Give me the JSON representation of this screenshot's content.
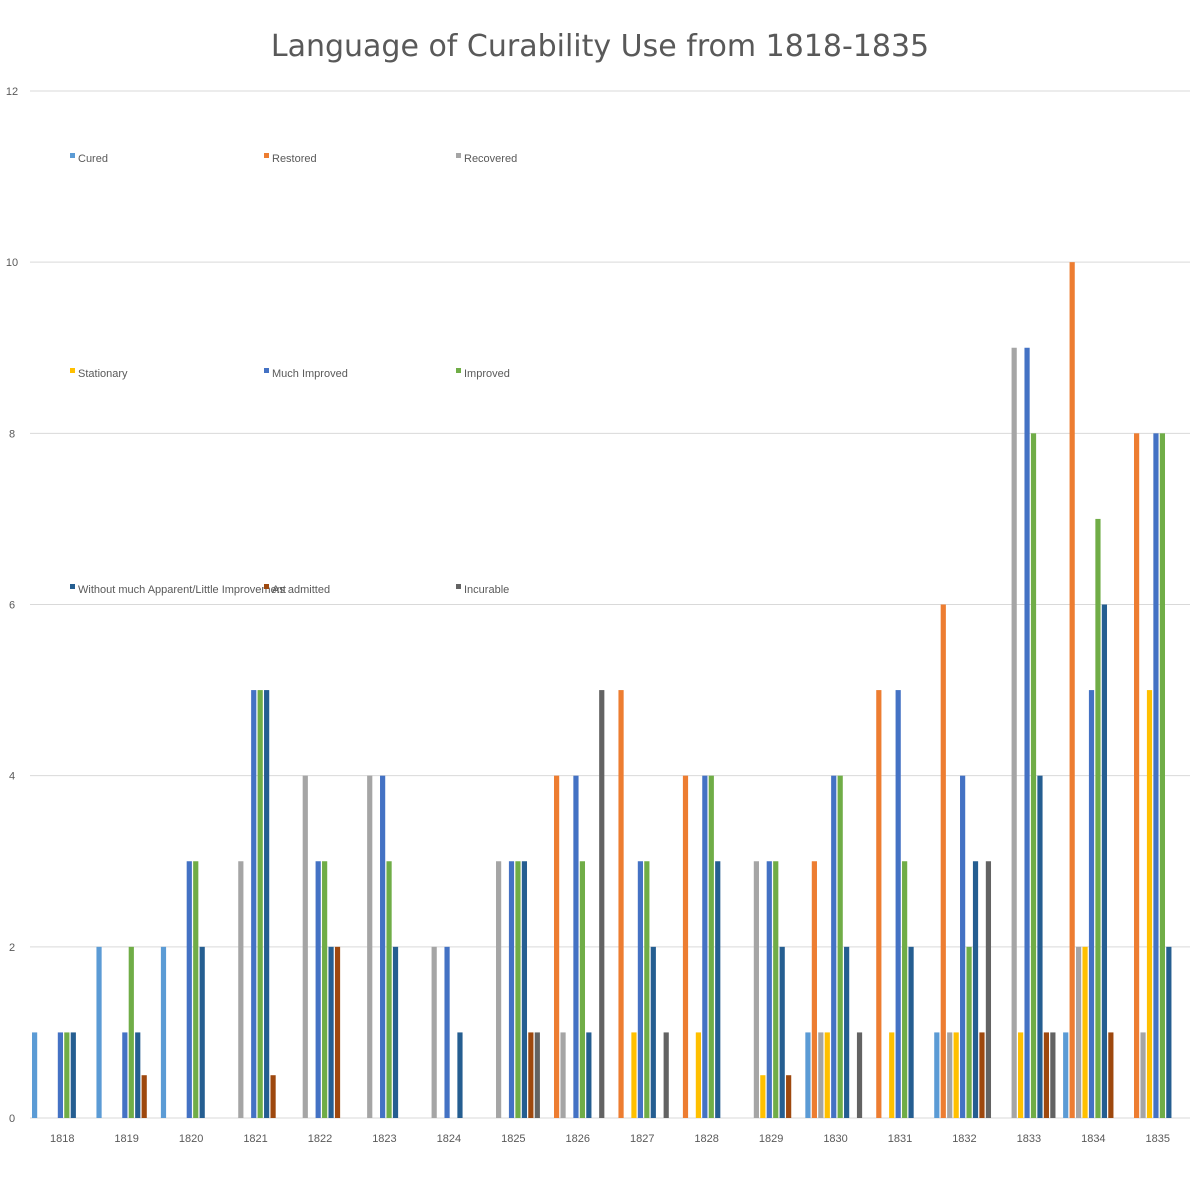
{
  "chart_data": {
    "type": "bar",
    "title": "Language of Curability Use from 1818-1835",
    "xlabel": "",
    "ylabel": "",
    "ylim": [
      0,
      12
    ],
    "y_ticks": [
      0,
      2,
      4,
      6,
      8,
      10,
      12
    ],
    "grid": true,
    "legend_position": "top (inside plot, 3 columns)",
    "categories": [
      "1818",
      "1819",
      "1820",
      "1821",
      "1822",
      "1823",
      "1824",
      "1825",
      "1826",
      "1827",
      "1828",
      "1829",
      "1830",
      "1831",
      "1832",
      "1833",
      "1834",
      "1835"
    ],
    "series": [
      {
        "name": "Cured",
        "color": "#5B9BD5",
        "values": [
          1,
          2,
          2,
          0,
          0,
          0,
          0,
          0,
          0,
          0,
          0,
          0,
          1,
          0,
          1,
          0,
          1,
          0
        ]
      },
      {
        "name": "Restored",
        "color": "#ED7D31",
        "values": [
          0,
          0,
          0,
          0,
          0,
          0,
          0,
          0,
          4,
          5,
          4,
          0,
          3,
          5,
          6,
          0,
          10,
          8
        ]
      },
      {
        "name": "Recovered",
        "color": "#A5A5A5",
        "values": [
          0,
          0,
          0,
          3,
          4,
          4,
          2,
          3,
          1,
          0,
          0,
          3,
          1,
          0,
          1,
          9,
          2,
          1
        ]
      },
      {
        "name": "Stationary",
        "color": "#FFC000",
        "values": [
          0,
          0,
          0,
          0,
          0,
          0,
          0,
          0,
          0,
          1,
          1,
          0.5,
          1,
          1,
          1,
          1,
          2,
          5
        ]
      },
      {
        "name": "Much Improved",
        "color": "#4472C4",
        "values": [
          1,
          1,
          3,
          5,
          3,
          4,
          2,
          3,
          4,
          3,
          4,
          3,
          4,
          5,
          4,
          9,
          5,
          8
        ]
      },
      {
        "name": "Improved",
        "color": "#70AD47",
        "values": [
          1,
          2,
          3,
          5,
          3,
          3,
          0,
          3,
          3,
          3,
          4,
          3,
          4,
          3,
          2,
          8,
          7,
          8
        ]
      },
      {
        "name": "Without much Apparent/Little Improvement",
        "color": "#255E91",
        "values": [
          1,
          1,
          2,
          5,
          2,
          2,
          1,
          3,
          1,
          2,
          3,
          2,
          2,
          2,
          3,
          4,
          6,
          2
        ]
      },
      {
        "name": "As admitted",
        "color": "#9E480E",
        "values": [
          0,
          0.5,
          0,
          0.5,
          2,
          0,
          0,
          1,
          0,
          0,
          0,
          0.5,
          0,
          0,
          1,
          1,
          1,
          0
        ]
      },
      {
        "name": "Incurable",
        "color": "#636363",
        "values": [
          0,
          0,
          0,
          0,
          0,
          0,
          0,
          1,
          5,
          1,
          0,
          0,
          1,
          0,
          3,
          1,
          0,
          0
        ]
      }
    ]
  }
}
